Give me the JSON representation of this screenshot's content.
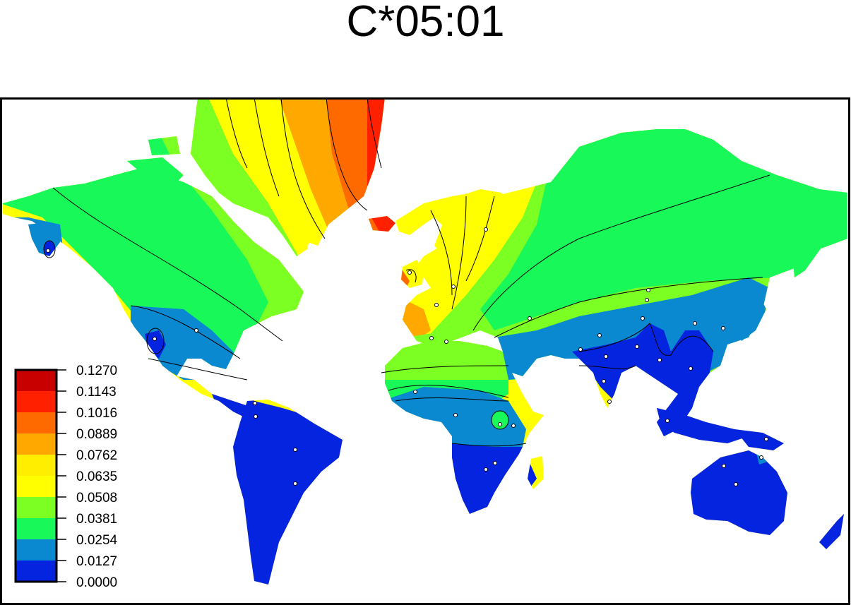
{
  "title": "C*05:01",
  "legend": {
    "labels": [
      "0.1270",
      "0.1143",
      "0.1016",
      "0.0889",
      "0.0762",
      "0.0635",
      "0.0508",
      "0.0381",
      "0.0254",
      "0.0127",
      "0.0000"
    ],
    "colors": [
      "#c80000",
      "#ff2000",
      "#ff6a00",
      "#ffa800",
      "#ffee00",
      "#ffff00",
      "#7cff22",
      "#18f858",
      "#0a88d0",
      "#0524e0"
    ]
  },
  "colors": {
    "land_low": "#0524e0",
    "land_lowmid": "#0a88d0",
    "land_mid": "#18f858",
    "land_midhigh": "#7cff22",
    "land_high": "#ffff00",
    "land_higher": "#ffa800",
    "land_top": "#ff6a00",
    "land_peak": "#ff2000",
    "ocean": "#ffffff",
    "contour": "#000000"
  }
}
